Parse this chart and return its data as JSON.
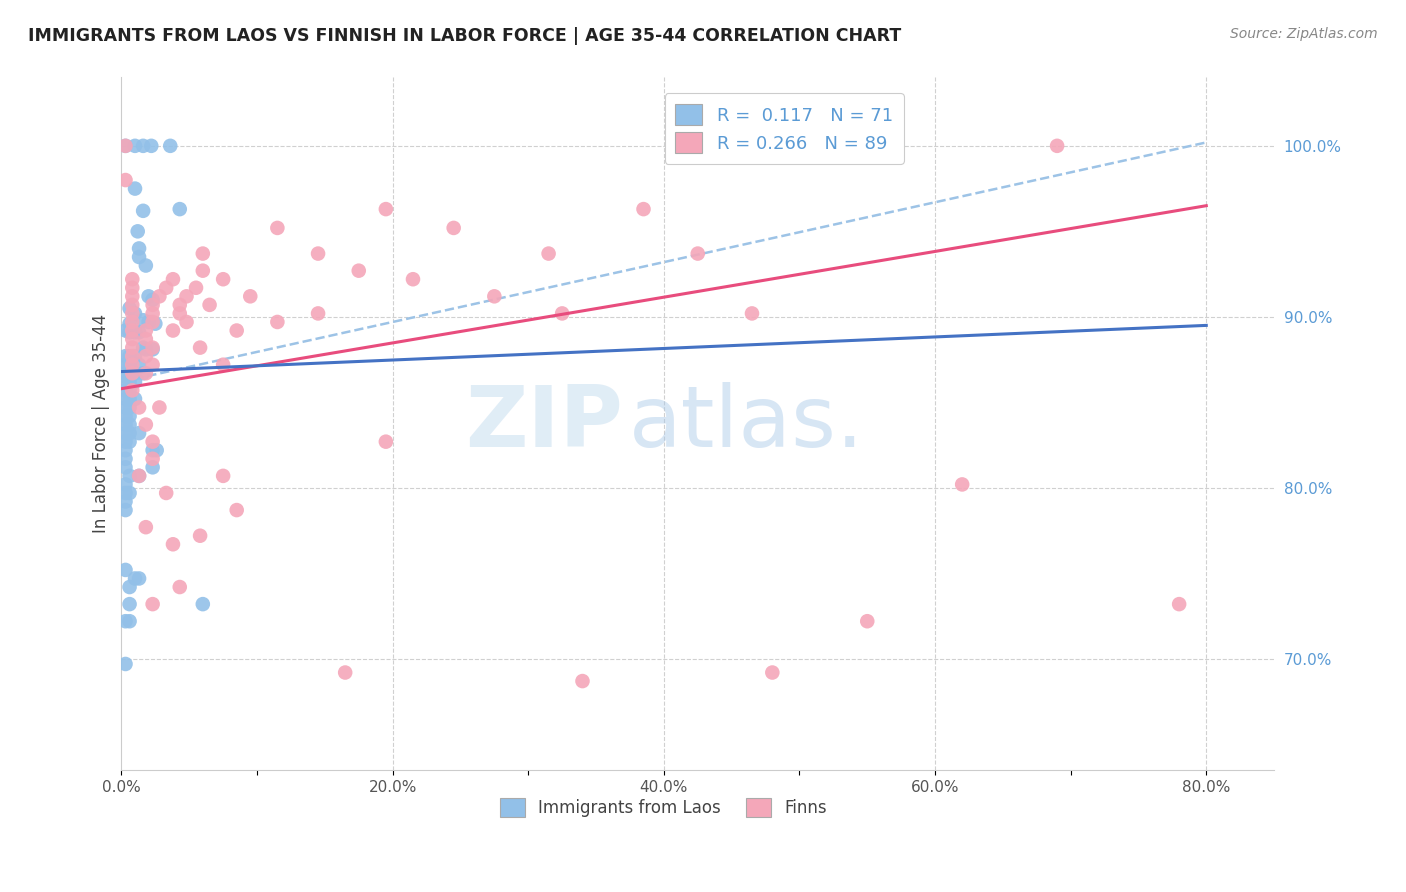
{
  "title": "IMMIGRANTS FROM LAOS VS FINNISH IN LABOR FORCE | AGE 35-44 CORRELATION CHART",
  "source": "Source: ZipAtlas.com",
  "ylabel": "In Labor Force | Age 35-44",
  "x_tick_labels": [
    "0.0%",
    "",
    "20.0%",
    "",
    "40.0%",
    "",
    "60.0%",
    "",
    "80.0%"
  ],
  "y_tick_labels_right": [
    "100.0%",
    "90.0%",
    "80.0%",
    "70.0%"
  ],
  "x_range": [
    0.0,
    0.85
  ],
  "y_range": [
    0.635,
    1.04
  ],
  "legend_label1": "Immigrants from Laos",
  "legend_label2": "Finns",
  "R1": 0.117,
  "N1": 71,
  "R2": 0.266,
  "N2": 89,
  "color_blue": "#92c0e8",
  "color_pink": "#f4a7b9",
  "trendline1_color": "#4472c4",
  "trendline2_color": "#e84c7d",
  "dashed_line_color": "#9dc3e6",
  "watermark_zip": "ZIP",
  "watermark_atlas": "atlas.",
  "blue_dots": [
    [
      0.003,
      1.0
    ],
    [
      0.01,
      1.0
    ],
    [
      0.016,
      1.0
    ],
    [
      0.022,
      1.0
    ],
    [
      0.036,
      1.0
    ],
    [
      0.01,
      0.975
    ],
    [
      0.043,
      0.963
    ],
    [
      0.016,
      0.962
    ],
    [
      0.012,
      0.95
    ],
    [
      0.013,
      0.94
    ],
    [
      0.013,
      0.935
    ],
    [
      0.018,
      0.93
    ],
    [
      0.02,
      0.912
    ],
    [
      0.023,
      0.91
    ],
    [
      0.006,
      0.905
    ],
    [
      0.01,
      0.902
    ],
    [
      0.016,
      0.898
    ],
    [
      0.02,
      0.897
    ],
    [
      0.025,
      0.896
    ],
    [
      0.006,
      0.896
    ],
    [
      0.003,
      0.892
    ],
    [
      0.006,
      0.891
    ],
    [
      0.01,
      0.891
    ],
    [
      0.013,
      0.891
    ],
    [
      0.016,
      0.882
    ],
    [
      0.018,
      0.881
    ],
    [
      0.023,
      0.881
    ],
    [
      0.003,
      0.877
    ],
    [
      0.006,
      0.877
    ],
    [
      0.01,
      0.877
    ],
    [
      0.003,
      0.872
    ],
    [
      0.006,
      0.872
    ],
    [
      0.013,
      0.872
    ],
    [
      0.003,
      0.867
    ],
    [
      0.006,
      0.867
    ],
    [
      0.01,
      0.867
    ],
    [
      0.016,
      0.867
    ],
    [
      0.003,
      0.862
    ],
    [
      0.006,
      0.862
    ],
    [
      0.01,
      0.862
    ],
    [
      0.003,
      0.857
    ],
    [
      0.006,
      0.857
    ],
    [
      0.003,
      0.852
    ],
    [
      0.006,
      0.852
    ],
    [
      0.01,
      0.852
    ],
    [
      0.003,
      0.847
    ],
    [
      0.006,
      0.847
    ],
    [
      0.003,
      0.842
    ],
    [
      0.006,
      0.842
    ],
    [
      0.003,
      0.837
    ],
    [
      0.006,
      0.837
    ],
    [
      0.003,
      0.832
    ],
    [
      0.006,
      0.832
    ],
    [
      0.013,
      0.832
    ],
    [
      0.003,
      0.827
    ],
    [
      0.006,
      0.827
    ],
    [
      0.003,
      0.822
    ],
    [
      0.023,
      0.822
    ],
    [
      0.026,
      0.822
    ],
    [
      0.003,
      0.817
    ],
    [
      0.003,
      0.812
    ],
    [
      0.023,
      0.812
    ],
    [
      0.006,
      0.807
    ],
    [
      0.013,
      0.807
    ],
    [
      0.003,
      0.802
    ],
    [
      0.003,
      0.797
    ],
    [
      0.006,
      0.797
    ],
    [
      0.003,
      0.792
    ],
    [
      0.003,
      0.787
    ],
    [
      0.003,
      0.752
    ],
    [
      0.01,
      0.747
    ],
    [
      0.013,
      0.747
    ],
    [
      0.006,
      0.742
    ],
    [
      0.006,
      0.732
    ],
    [
      0.003,
      0.722
    ],
    [
      0.006,
      0.722
    ],
    [
      0.003,
      0.697
    ],
    [
      0.06,
      0.732
    ]
  ],
  "pink_dots": [
    [
      0.003,
      1.0
    ],
    [
      0.42,
      1.0
    ],
    [
      0.55,
      1.0
    ],
    [
      0.69,
      1.0
    ],
    [
      0.003,
      0.98
    ],
    [
      0.195,
      0.963
    ],
    [
      0.385,
      0.963
    ],
    [
      0.115,
      0.952
    ],
    [
      0.245,
      0.952
    ],
    [
      0.06,
      0.937
    ],
    [
      0.145,
      0.937
    ],
    [
      0.315,
      0.937
    ],
    [
      0.425,
      0.937
    ],
    [
      0.06,
      0.927
    ],
    [
      0.175,
      0.927
    ],
    [
      0.008,
      0.922
    ],
    [
      0.038,
      0.922
    ],
    [
      0.075,
      0.922
    ],
    [
      0.215,
      0.922
    ],
    [
      0.008,
      0.917
    ],
    [
      0.033,
      0.917
    ],
    [
      0.055,
      0.917
    ],
    [
      0.008,
      0.912
    ],
    [
      0.028,
      0.912
    ],
    [
      0.048,
      0.912
    ],
    [
      0.095,
      0.912
    ],
    [
      0.275,
      0.912
    ],
    [
      0.008,
      0.907
    ],
    [
      0.023,
      0.907
    ],
    [
      0.043,
      0.907
    ],
    [
      0.065,
      0.907
    ],
    [
      0.008,
      0.902
    ],
    [
      0.023,
      0.902
    ],
    [
      0.043,
      0.902
    ],
    [
      0.145,
      0.902
    ],
    [
      0.325,
      0.902
    ],
    [
      0.465,
      0.902
    ],
    [
      0.008,
      0.897
    ],
    [
      0.023,
      0.897
    ],
    [
      0.048,
      0.897
    ],
    [
      0.115,
      0.897
    ],
    [
      0.008,
      0.892
    ],
    [
      0.018,
      0.892
    ],
    [
      0.038,
      0.892
    ],
    [
      0.085,
      0.892
    ],
    [
      0.008,
      0.887
    ],
    [
      0.018,
      0.887
    ],
    [
      0.008,
      0.882
    ],
    [
      0.023,
      0.882
    ],
    [
      0.058,
      0.882
    ],
    [
      0.008,
      0.877
    ],
    [
      0.018,
      0.877
    ],
    [
      0.008,
      0.872
    ],
    [
      0.023,
      0.872
    ],
    [
      0.075,
      0.872
    ],
    [
      0.008,
      0.867
    ],
    [
      0.018,
      0.867
    ],
    [
      0.008,
      0.857
    ],
    [
      0.013,
      0.847
    ],
    [
      0.028,
      0.847
    ],
    [
      0.018,
      0.837
    ],
    [
      0.023,
      0.827
    ],
    [
      0.195,
      0.827
    ],
    [
      0.023,
      0.817
    ],
    [
      0.013,
      0.807
    ],
    [
      0.075,
      0.807
    ],
    [
      0.033,
      0.797
    ],
    [
      0.085,
      0.787
    ],
    [
      0.018,
      0.777
    ],
    [
      0.058,
      0.772
    ],
    [
      0.038,
      0.767
    ],
    [
      0.043,
      0.742
    ],
    [
      0.62,
      0.802
    ],
    [
      0.023,
      0.732
    ],
    [
      0.55,
      0.722
    ],
    [
      0.48,
      0.692
    ],
    [
      0.165,
      0.692
    ],
    [
      0.78,
      0.732
    ],
    [
      0.34,
      0.687
    ]
  ],
  "trendline1_x": [
    0.0,
    0.8
  ],
  "trendline1_y": [
    0.868,
    0.895
  ],
  "trendline2_x": [
    0.0,
    0.8
  ],
  "trendline2_y": [
    0.858,
    0.965
  ],
  "dashed_line_x": [
    0.0,
    0.8
  ],
  "dashed_line_y": [
    0.862,
    1.002
  ]
}
